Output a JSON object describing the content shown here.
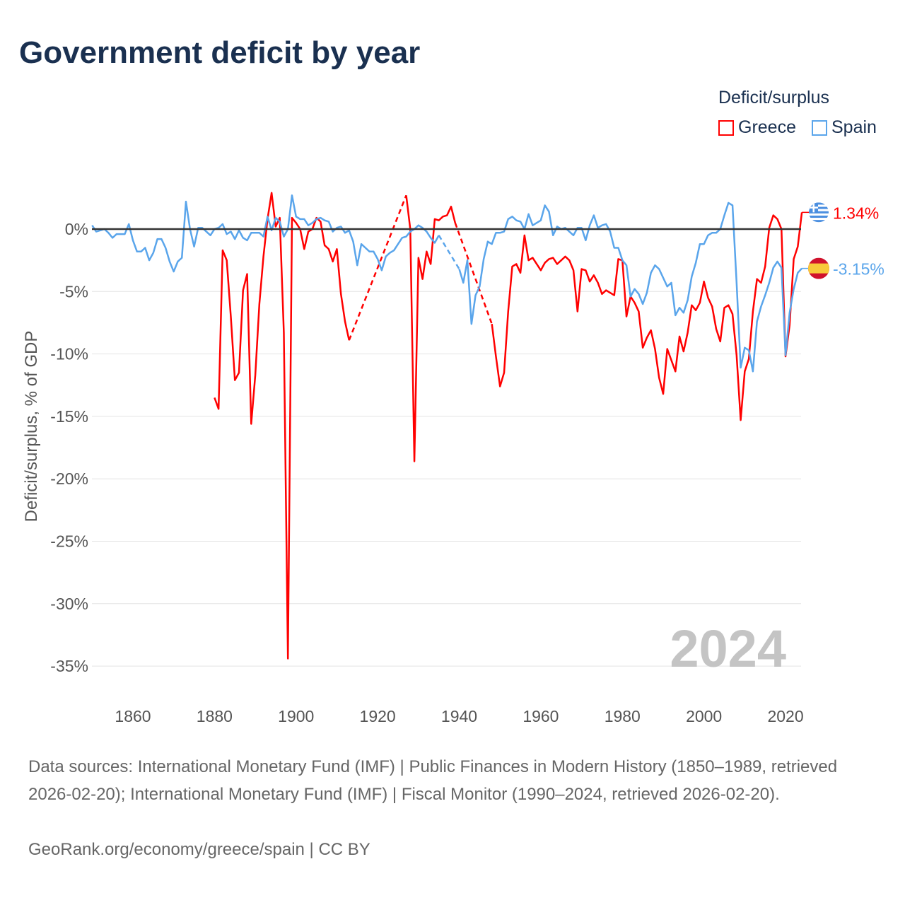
{
  "title": "Government deficit by year",
  "legend": {
    "title": "Deficit/surplus",
    "items": [
      {
        "name": "Greece",
        "color": "#ff0000"
      },
      {
        "name": "Spain",
        "color": "#5aa5eb"
      }
    ]
  },
  "footer": {
    "sources": "Data sources: International Monetary Fund (IMF) | Public Finances in Modern History (1850–1989, retrieved 2026-02-20); International Monetary Fund (IMF) | Fiscal Monitor (1990–2024, retrieved 2026-02-20).",
    "credit": "GeoRank.org/economy/greece/spain | CC BY"
  },
  "chart_data": {
    "type": "line",
    "title": "Government deficit by year",
    "ylabel": "Deficit/surplus, % of GDP",
    "xlabel": "",
    "year_watermark": "2024",
    "xlim": [
      1850,
      2024
    ],
    "ylim": [
      -35,
      3
    ],
    "xticks": [
      1860,
      1880,
      1900,
      1920,
      1940,
      1960,
      1980,
      2000,
      2020
    ],
    "yticks": [
      0,
      -5,
      -10,
      -15,
      -20,
      -25,
      -30,
      -35
    ],
    "ytick_labels": [
      "0%",
      "-5%",
      "-10%",
      "-15%",
      "-20%",
      "-25%",
      "-30%",
      "-35%"
    ],
    "end_labels": {
      "Greece": "1.34%",
      "Spain": "-3.15%"
    },
    "series": [
      {
        "name": "Greece",
        "color": "#ff0000",
        "start": 1880,
        "values": [
          -13.5,
          -14.4,
          -1.7,
          -2.5,
          -7,
          -12.1,
          -11.5,
          -4.9,
          -3.6,
          -15.6,
          -11.7,
          -6,
          -2.2,
          0.8,
          2.9,
          0.2,
          0.9,
          -8.3,
          -34.4,
          0.9,
          0.5,
          0,
          -1.6,
          -0.2,
          0,
          0.9,
          0.6,
          -1.3,
          -1.6,
          -2.6,
          -1.6,
          -5.2,
          -7.4,
          -8.9,
          null,
          null,
          null,
          null,
          null,
          null,
          null,
          null,
          null,
          null,
          null,
          null,
          null,
          2.7,
          0,
          -18.6,
          -2.3,
          -4,
          -1.8,
          -2.8,
          0.8,
          0.7,
          1,
          1.1,
          1.8,
          0.5,
          null,
          null,
          null,
          null,
          null,
          null,
          null,
          null,
          -7.6,
          -10.2,
          -12.6,
          -11.5,
          -6.6,
          -3,
          -2.8,
          -3.5,
          -0.5,
          -2.5,
          -2.3,
          -2.8,
          -3.3,
          -2.7,
          -2.4,
          -2.3,
          -2.8,
          -2.5,
          -2.2,
          -2.5,
          -3.3,
          -6.6,
          -3.2,
          -3.3,
          -4.2,
          -3.7,
          -4.3,
          -5.2,
          -4.9,
          -5.1,
          -5.3,
          -2.4,
          -2.5,
          -7,
          -5.4,
          -5.9,
          -6.6,
          -9.5,
          -8.7,
          -8.1,
          -9.6,
          -11.9,
          -13.2,
          -9.6,
          -10.5,
          -11.4,
          -8.6,
          -9.8,
          -8.3,
          -6.1,
          -6.5,
          -5.9,
          -4.2,
          -5.5,
          -6.2,
          -8,
          -9,
          -6.3,
          -6.1,
          -6.8,
          -10.1,
          -15.3,
          -11.4,
          -10.4,
          -6.6,
          -4,
          -4.3,
          -3,
          0.1,
          1.1,
          0.8,
          0,
          -10.2,
          -7.7,
          -2.4,
          -1.4,
          1.34
        ]
      },
      {
        "name": "Spain",
        "color": "#5aa5eb",
        "start": 1850,
        "values": [
          0.3,
          -0.2,
          -0.1,
          0,
          -0.3,
          -0.7,
          -0.4,
          -0.4,
          -0.4,
          0.4,
          -0.9,
          -1.8,
          -1.8,
          -1.5,
          -2.5,
          -1.9,
          -0.8,
          -0.8,
          -1.5,
          -2.6,
          -3.4,
          -2.6,
          -2.3,
          2.2,
          0,
          -1.4,
          0.1,
          0.1,
          -0.2,
          -0.5,
          0,
          0.1,
          0.4,
          -0.4,
          -0.2,
          -0.8,
          -0.1,
          -0.7,
          -0.9,
          -0.3,
          -0.3,
          -0.3,
          -0.6,
          1,
          -0.1,
          0.9,
          0.6,
          -0.6,
          0,
          2.7,
          1,
          0.8,
          0.8,
          0.3,
          0.5,
          0.8,
          0.9,
          0.7,
          0.6,
          -0.2,
          0.1,
          0.2,
          -0.3,
          -0.1,
          -1,
          -2.9,
          -1.2,
          -1.5,
          -1.8,
          -1.8,
          -2.4,
          -3.3,
          -2.2,
          -1.9,
          -1.7,
          -1.2,
          -0.7,
          -0.6,
          -0.2,
          0,
          0.3,
          0.1,
          -0.2,
          -0.7,
          -1.1,
          -0.5,
          null,
          null,
          null,
          null,
          -3.2,
          -4.3,
          -2.5,
          -7.6,
          -5.3,
          -4.6,
          -2.4,
          -1,
          -1.2,
          -0.3,
          -0.3,
          -0.2,
          0.8,
          1,
          0.7,
          0.6,
          0,
          1.2,
          0.3,
          0.5,
          0.7,
          1.9,
          1.4,
          -0.5,
          0.2,
          0,
          0.1,
          -0.2,
          -0.5,
          0.1,
          0.1,
          -0.9,
          0.3,
          1.1,
          0.1,
          0.3,
          0.4,
          -0.2,
          -1.5,
          -1.5,
          -2.5,
          -2.9,
          -5.4,
          -4.8,
          -5.2,
          -6,
          -5.1,
          -3.5,
          -2.9,
          -3.2,
          -3.9,
          -4.6,
          -4.3,
          -6.9,
          -6.3,
          -6.7,
          -5.7,
          -3.8,
          -2.7,
          -1.2,
          -1.2,
          -0.5,
          -0.3,
          -0.3,
          0,
          1.1,
          2.1,
          1.9,
          -4.3,
          -11.1,
          -9.5,
          -9.7,
          -11.4,
          -7.4,
          -6.2,
          -5.3,
          -4.3,
          -3.1,
          -2.6,
          -3.1,
          -10.1,
          -6.7,
          -4.8,
          -3.5,
          -3.15
        ]
      }
    ]
  }
}
